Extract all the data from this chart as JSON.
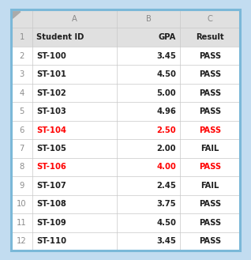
{
  "col_headers": [
    "A",
    "B",
    "C"
  ],
  "header_row": [
    "Student ID",
    "GPA",
    "Result"
  ],
  "rows": [
    [
      "ST-100",
      "3.45",
      "PASS"
    ],
    [
      "ST-101",
      "4.50",
      "PASS"
    ],
    [
      "ST-102",
      "5.00",
      "PASS"
    ],
    [
      "ST-103",
      "4.96",
      "PASS"
    ],
    [
      "ST-104",
      "2.50",
      "PASS"
    ],
    [
      "ST-105",
      "2.00",
      "FAIL"
    ],
    [
      "ST-106",
      "4.00",
      "PASS"
    ],
    [
      "ST-107",
      "2.45",
      "FAIL"
    ],
    [
      "ST-108",
      "3.75",
      "PASS"
    ],
    [
      "ST-109",
      "4.50",
      "PASS"
    ],
    [
      "ST-110",
      "3.45",
      "PASS"
    ]
  ],
  "fail_row_indices": [
    5,
    7
  ],
  "outer_bg": "#C2DCF0",
  "outer_border_color": "#7BB8D8",
  "header_bg": "#E0E0E0",
  "row_number_color": "#8C8C8C",
  "col_header_color": "#888888",
  "data_text_color": "#1F1F1F",
  "fail_text_color": "#FF0000",
  "grid_color": "#C8C8C8",
  "bg_color": "#FFFFFF",
  "font_size": 7.2,
  "header_font_size": 7.2
}
